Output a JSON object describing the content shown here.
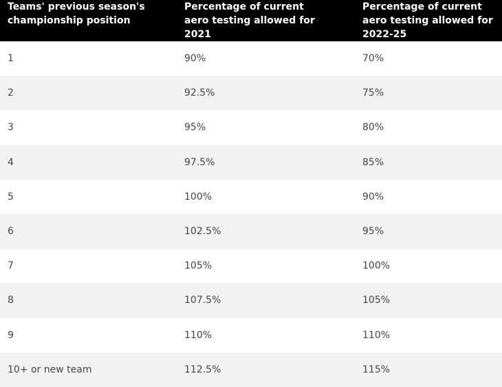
{
  "table": {
    "header": [
      "Teams' previous season's championship position",
      "Percentage of current aero testing allowed for 2021",
      "Percentage of current aero testing allowed for 2022-25"
    ],
    "rows": [
      [
        "1",
        "90%",
        "70%"
      ],
      [
        "2",
        "92.5%",
        "75%"
      ],
      [
        "3",
        "95%",
        "80%"
      ],
      [
        "4",
        "97.5%",
        "85%"
      ],
      [
        "5",
        "100%",
        "90%"
      ],
      [
        "6",
        "102.5%",
        "95%"
      ],
      [
        "7",
        "105%",
        "100%"
      ],
      [
        "8",
        "107.5%",
        "105%"
      ],
      [
        "9",
        "110%",
        "110%"
      ],
      [
        "10+ or new team",
        "112.5%",
        "115%"
      ]
    ]
  }
}
